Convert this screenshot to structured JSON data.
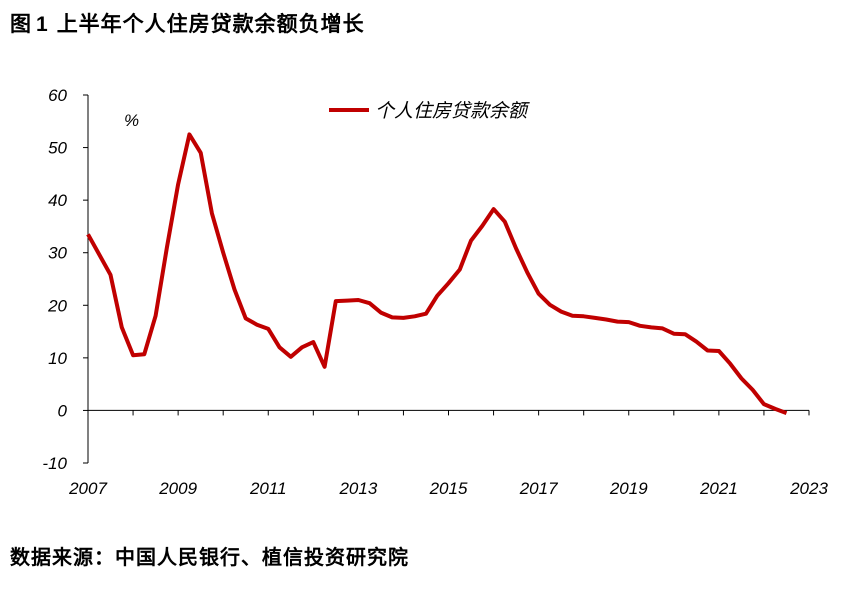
{
  "figure_label": "图",
  "figure_number": "1",
  "figure_title": "上半年个人住房贷款余额负增长",
  "source": "数据来源：中国人民银行、植信投资研究院",
  "colors": {
    "series": "#c00000",
    "axis": "#000000"
  },
  "chart_data": {
    "type": "line",
    "title": "",
    "xlabel": "",
    "ylabel": "%",
    "xlim": [
      2007,
      2023
    ],
    "ylim": [
      -10,
      60
    ],
    "yticks": [
      "60",
      "50",
      "40",
      "30",
      "20",
      "10",
      "0",
      "-10"
    ],
    "xticks": [
      "2007",
      "2009",
      "2011",
      "2013",
      "2015",
      "2017",
      "2019",
      "2021",
      "2023"
    ],
    "legend_position": "top-center",
    "grid": false,
    "series": [
      {
        "name": "个人住房贷款余额",
        "x": [
          2007.0,
          2007.5,
          2007.75,
          2008.0,
          2008.25,
          2008.5,
          2008.75,
          2009.0,
          2009.25,
          2009.5,
          2009.75,
          2010.0,
          2010.25,
          2010.5,
          2010.75,
          2011.0,
          2011.25,
          2011.5,
          2011.75,
          2012.0,
          2012.25,
          2012.5,
          2012.75,
          2013.0,
          2013.25,
          2013.5,
          2013.75,
          2014.0,
          2014.25,
          2014.5,
          2014.75,
          2015.0,
          2015.25,
          2015.5,
          2015.75,
          2016.0,
          2016.25,
          2016.5,
          2016.75,
          2017.0,
          2017.25,
          2017.5,
          2017.75,
          2018.0,
          2018.25,
          2018.5,
          2018.75,
          2019.0,
          2019.25,
          2019.5,
          2019.75,
          2020.0,
          2020.25,
          2020.5,
          2020.75,
          2021.0,
          2021.25,
          2021.5,
          2021.75,
          2022.0,
          2022.25,
          2022.5
        ],
        "y": [
          33.5,
          25.8,
          15.8,
          10.5,
          10.7,
          18.0,
          31.0,
          43.0,
          52.5,
          49.0,
          37.5,
          30.0,
          23.0,
          17.5,
          16.3,
          15.5,
          12.0,
          10.2,
          12.0,
          13.0,
          8.3,
          20.8,
          20.9,
          21.0,
          20.4,
          18.6,
          17.7,
          17.6,
          17.9,
          18.4,
          21.8,
          24.2,
          26.8,
          32.3,
          35.1,
          38.3,
          35.9,
          30.8,
          26.2,
          22.2,
          20.1,
          18.8,
          18.0,
          17.9,
          17.6,
          17.3,
          16.9,
          16.8,
          16.1,
          15.8,
          15.6,
          14.6,
          14.5,
          13.1,
          11.4,
          11.3,
          8.9,
          6.1,
          3.9,
          1.2,
          0.3,
          -0.5
        ]
      }
    ]
  }
}
